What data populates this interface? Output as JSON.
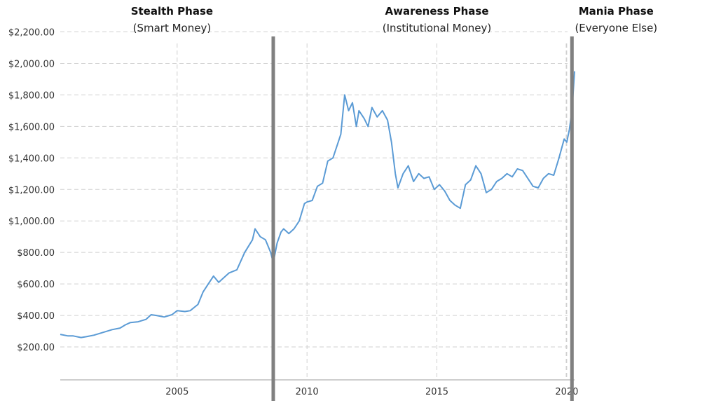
{
  "chart_data": {
    "type": "line",
    "title": "",
    "xlabel": "",
    "ylabel": "",
    "xlim": [
      2000.5,
      2020.3
    ],
    "ylim": [
      0,
      2200
    ],
    "grid": true,
    "yticks": [
      200,
      400,
      600,
      800,
      1000,
      1200,
      1400,
      1600,
      1800,
      2000,
      2200
    ],
    "ytick_labels": [
      "$200.00",
      "$400.00",
      "$600.00",
      "$800.00",
      "$1,000.00",
      "$1,200.00",
      "$1,400.00",
      "$1,600.00",
      "$1,800.00",
      "$2,000.00",
      "$2,200.00"
    ],
    "xticks": [
      2005,
      2010,
      2015,
      2020
    ],
    "xtick_labels": [
      "2005",
      "2010",
      "2015",
      "2020"
    ],
    "line_color": "#5b9bd5",
    "divider_color": "#808080",
    "dividers": [
      2008.7,
      2020.2
    ],
    "phases": [
      {
        "title": "Stealth Phase",
        "subtitle": "(Smart Money)",
        "x": 2004.8
      },
      {
        "title": "Awareness Phase",
        "subtitle": "(Institutional Money)",
        "x": 2015.0
      },
      {
        "title": "Mania Phase",
        "subtitle": "(Everyone Else)",
        "x": 2021.9
      }
    ],
    "series": [
      {
        "x": [
          2000.5,
          2000.8,
          2001.0,
          2001.3,
          2001.5,
          2001.8,
          2002.0,
          2002.3,
          2002.5,
          2002.8,
          2003.0,
          2003.2,
          2003.5,
          2003.8,
          2004.0,
          2004.2,
          2004.5,
          2004.8,
          2005.0,
          2005.3,
          2005.5,
          2005.8,
          2006.0,
          2006.2,
          2006.4,
          2006.6,
          2006.8,
          2007.0,
          2007.3,
          2007.6,
          2007.9,
          2008.0,
          2008.2,
          2008.4,
          2008.6,
          2008.7,
          2008.85,
          2009.0,
          2009.1,
          2009.3,
          2009.5,
          2009.7,
          2009.9,
          2010.0,
          2010.2,
          2010.4,
          2010.6,
          2010.8,
          2011.0,
          2011.2,
          2011.3,
          2011.45,
          2011.6,
          2011.75,
          2011.9,
          2012.0,
          2012.2,
          2012.35,
          2012.5,
          2012.7,
          2012.9,
          2013.1,
          2013.25,
          2013.4,
          2013.5,
          2013.7,
          2013.9,
          2014.1,
          2014.3,
          2014.5,
          2014.7,
          2014.9,
          2015.1,
          2015.3,
          2015.5,
          2015.7,
          2015.9,
          2016.1,
          2016.3,
          2016.5,
          2016.7,
          2016.9,
          2017.1,
          2017.3,
          2017.5,
          2017.7,
          2017.9,
          2018.1,
          2018.3,
          2018.5,
          2018.7,
          2018.9,
          2019.1,
          2019.3,
          2019.5,
          2019.7,
          2019.9,
          2020.0,
          2020.1,
          2020.2,
          2020.3
        ],
        "y": [
          280,
          270,
          270,
          260,
          265,
          275,
          285,
          300,
          310,
          320,
          340,
          355,
          360,
          375,
          405,
          400,
          390,
          405,
          430,
          425,
          430,
          470,
          550,
          600,
          650,
          610,
          640,
          670,
          690,
          800,
          880,
          950,
          900,
          880,
          800,
          735,
          860,
          930,
          950,
          920,
          950,
          1000,
          1110,
          1120,
          1130,
          1220,
          1240,
          1380,
          1400,
          1500,
          1550,
          1800,
          1700,
          1750,
          1600,
          1700,
          1650,
          1600,
          1720,
          1660,
          1700,
          1640,
          1500,
          1300,
          1210,
          1300,
          1350,
          1250,
          1300,
          1270,
          1280,
          1200,
          1230,
          1190,
          1130,
          1100,
          1080,
          1230,
          1260,
          1350,
          1300,
          1180,
          1200,
          1250,
          1270,
          1300,
          1280,
          1330,
          1320,
          1270,
          1220,
          1210,
          1270,
          1300,
          1290,
          1400,
          1520,
          1500,
          1580,
          1700,
          1950
        ]
      }
    ]
  }
}
